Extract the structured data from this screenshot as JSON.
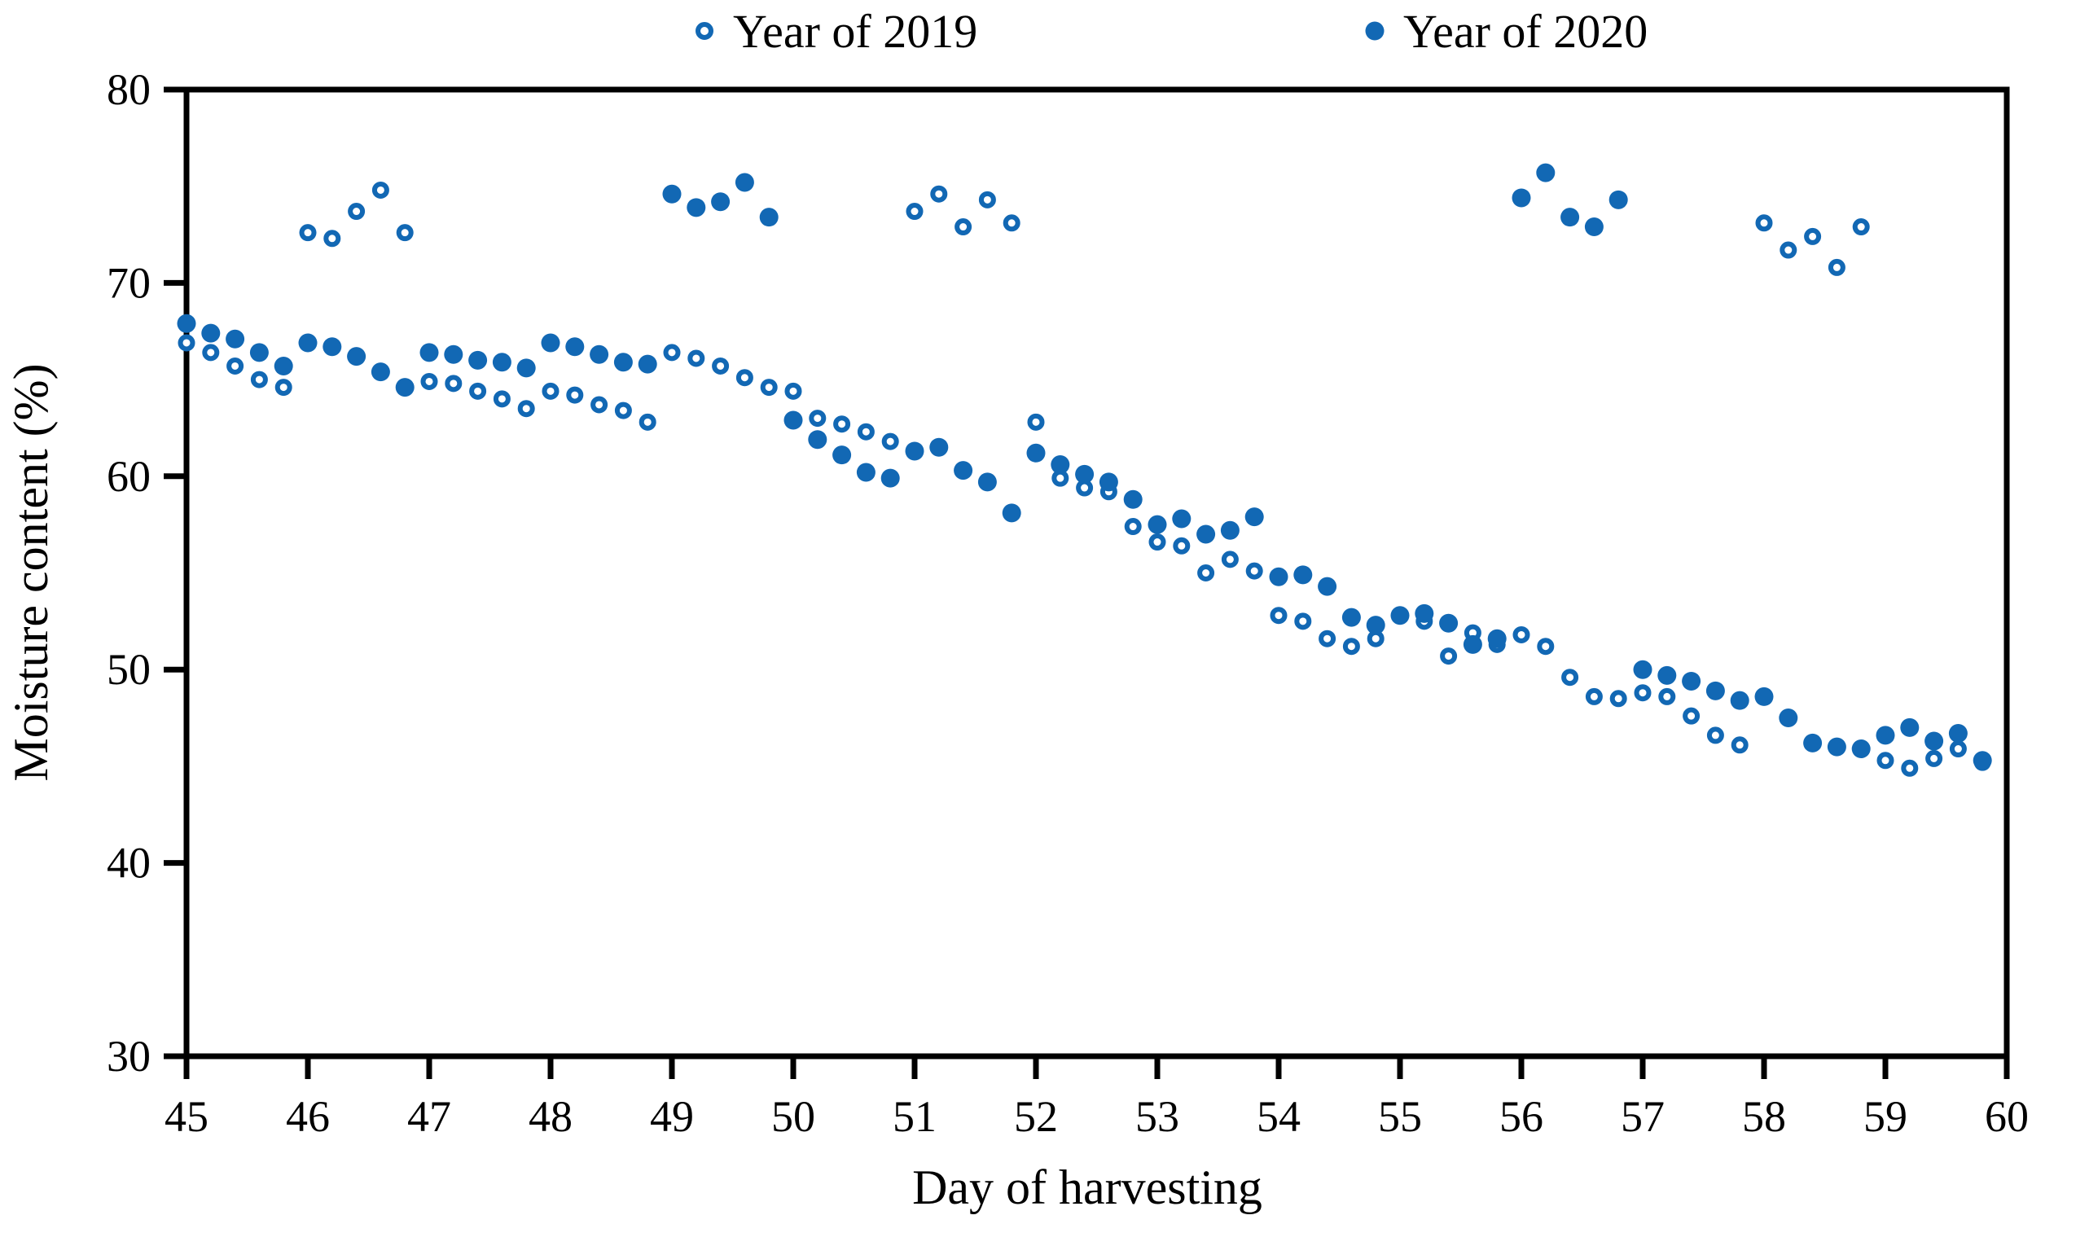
{
  "figure_colors": {
    "marker_blue": "#1268B4",
    "axis_black": "#000000",
    "background": "#FFFFFF"
  },
  "chart_data": {
    "type": "scatter",
    "title": "",
    "xlabel": "Day of harvesting",
    "ylabel": "Moisture content (%)",
    "xlim": [
      45,
      60
    ],
    "ylim": [
      30,
      80
    ],
    "xticks": [
      "45",
      "46",
      "47",
      "48",
      "49",
      "50",
      "51",
      "52",
      "53",
      "54",
      "55",
      "56",
      "57",
      "58",
      "59",
      "60"
    ],
    "yticks": [
      "30",
      "40",
      "50",
      "60",
      "70",
      "80"
    ],
    "grid": false,
    "legend_position": "top-center",
    "legend": [
      "Year of 2019",
      "Year of 2020"
    ],
    "series": [
      {
        "name": "Year of 2019",
        "marker": "open-circle",
        "color": "#1268B4",
        "points": [
          [
            45.0,
            66.9
          ],
          [
            45.2,
            66.4
          ],
          [
            45.4,
            65.7
          ],
          [
            45.6,
            65.0
          ],
          [
            45.8,
            64.6
          ],
          [
            46.0,
            72.6
          ],
          [
            46.2,
            72.3
          ],
          [
            46.4,
            73.7
          ],
          [
            46.6,
            74.8
          ],
          [
            46.8,
            72.6
          ],
          [
            47.0,
            64.9
          ],
          [
            47.2,
            64.8
          ],
          [
            47.4,
            64.4
          ],
          [
            47.6,
            64.0
          ],
          [
            47.8,
            63.5
          ],
          [
            48.0,
            64.4
          ],
          [
            48.2,
            64.2
          ],
          [
            48.4,
            63.7
          ],
          [
            48.6,
            63.4
          ],
          [
            48.8,
            62.8
          ],
          [
            49.0,
            66.4
          ],
          [
            49.2,
            66.1
          ],
          [
            49.4,
            65.7
          ],
          [
            49.6,
            65.1
          ],
          [
            49.8,
            64.6
          ],
          [
            50.0,
            64.4
          ],
          [
            50.2,
            63.0
          ],
          [
            50.4,
            62.7
          ],
          [
            50.6,
            62.3
          ],
          [
            50.8,
            61.8
          ],
          [
            51.0,
            73.7
          ],
          [
            51.2,
            74.6
          ],
          [
            51.4,
            72.9
          ],
          [
            51.6,
            74.3
          ],
          [
            51.8,
            73.1
          ],
          [
            52.0,
            62.8
          ],
          [
            52.2,
            59.9
          ],
          [
            52.4,
            59.4
          ],
          [
            52.6,
            59.2
          ],
          [
            52.8,
            57.4
          ],
          [
            53.0,
            56.6
          ],
          [
            53.2,
            56.4
          ],
          [
            53.4,
            55.0
          ],
          [
            53.6,
            55.7
          ],
          [
            53.8,
            55.1
          ],
          [
            54.0,
            52.8
          ],
          [
            54.2,
            52.5
          ],
          [
            54.4,
            51.6
          ],
          [
            54.6,
            51.2
          ],
          [
            54.8,
            51.6
          ],
          [
            55.0,
            52.8
          ],
          [
            55.2,
            52.5
          ],
          [
            55.4,
            50.7
          ],
          [
            55.6,
            51.9
          ],
          [
            55.8,
            51.3
          ],
          [
            56.0,
            51.8
          ],
          [
            56.2,
            51.2
          ],
          [
            56.4,
            49.6
          ],
          [
            56.6,
            48.6
          ],
          [
            56.8,
            48.5
          ],
          [
            57.0,
            48.8
          ],
          [
            57.2,
            48.6
          ],
          [
            57.4,
            47.6
          ],
          [
            57.6,
            46.6
          ],
          [
            57.8,
            46.1
          ],
          [
            58.0,
            73.1
          ],
          [
            58.2,
            71.7
          ],
          [
            58.4,
            72.4
          ],
          [
            58.6,
            70.8
          ],
          [
            58.8,
            72.9
          ],
          [
            59.0,
            45.3
          ],
          [
            59.2,
            44.9
          ],
          [
            59.4,
            45.4
          ],
          [
            59.6,
            45.9
          ],
          [
            59.8,
            45.2
          ]
        ]
      },
      {
        "name": "Year of 2020",
        "marker": "filled-circle",
        "color": "#1268B4",
        "points": [
          [
            45.0,
            67.9
          ],
          [
            45.2,
            67.4
          ],
          [
            45.4,
            67.1
          ],
          [
            45.6,
            66.4
          ],
          [
            45.8,
            65.7
          ],
          [
            46.0,
            66.9
          ],
          [
            46.2,
            66.7
          ],
          [
            46.4,
            66.2
          ],
          [
            46.6,
            65.4
          ],
          [
            46.8,
            64.6
          ],
          [
            47.0,
            66.4
          ],
          [
            47.2,
            66.3
          ],
          [
            47.4,
            66.0
          ],
          [
            47.6,
            65.9
          ],
          [
            47.8,
            65.6
          ],
          [
            48.0,
            66.9
          ],
          [
            48.2,
            66.7
          ],
          [
            48.4,
            66.3
          ],
          [
            48.6,
            65.9
          ],
          [
            48.8,
            65.8
          ],
          [
            49.0,
            74.6
          ],
          [
            49.2,
            73.9
          ],
          [
            49.4,
            74.2
          ],
          [
            49.6,
            75.2
          ],
          [
            49.8,
            73.4
          ],
          [
            50.0,
            62.9
          ],
          [
            50.2,
            61.9
          ],
          [
            50.4,
            61.1
          ],
          [
            50.6,
            60.2
          ],
          [
            50.8,
            59.9
          ],
          [
            51.0,
            61.3
          ],
          [
            51.2,
            61.5
          ],
          [
            51.4,
            60.3
          ],
          [
            51.6,
            59.7
          ],
          [
            51.8,
            58.1
          ],
          [
            52.0,
            61.2
          ],
          [
            52.2,
            60.6
          ],
          [
            52.4,
            60.1
          ],
          [
            52.6,
            59.7
          ],
          [
            52.8,
            58.8
          ],
          [
            53.0,
            57.5
          ],
          [
            53.2,
            57.8
          ],
          [
            53.4,
            57.0
          ],
          [
            53.6,
            57.2
          ],
          [
            53.8,
            57.9
          ],
          [
            54.0,
            54.8
          ],
          [
            54.2,
            54.9
          ],
          [
            54.4,
            54.3
          ],
          [
            54.6,
            52.7
          ],
          [
            54.8,
            52.3
          ],
          [
            55.0,
            52.8
          ],
          [
            55.2,
            52.9
          ],
          [
            55.4,
            52.4
          ],
          [
            55.6,
            51.3
          ],
          [
            55.8,
            51.6
          ],
          [
            56.0,
            74.4
          ],
          [
            56.2,
            75.7
          ],
          [
            56.4,
            73.4
          ],
          [
            56.6,
            72.9
          ],
          [
            56.8,
            74.3
          ],
          [
            57.0,
            50.0
          ],
          [
            57.2,
            49.7
          ],
          [
            57.4,
            49.4
          ],
          [
            57.6,
            48.9
          ],
          [
            57.8,
            48.4
          ],
          [
            58.0,
            48.6
          ],
          [
            58.2,
            47.5
          ],
          [
            58.4,
            46.2
          ],
          [
            58.6,
            46.0
          ],
          [
            58.8,
            45.9
          ],
          [
            59.0,
            46.6
          ],
          [
            59.2,
            47.0
          ],
          [
            59.4,
            46.3
          ],
          [
            59.6,
            46.7
          ],
          [
            59.8,
            45.3
          ]
        ]
      }
    ]
  }
}
